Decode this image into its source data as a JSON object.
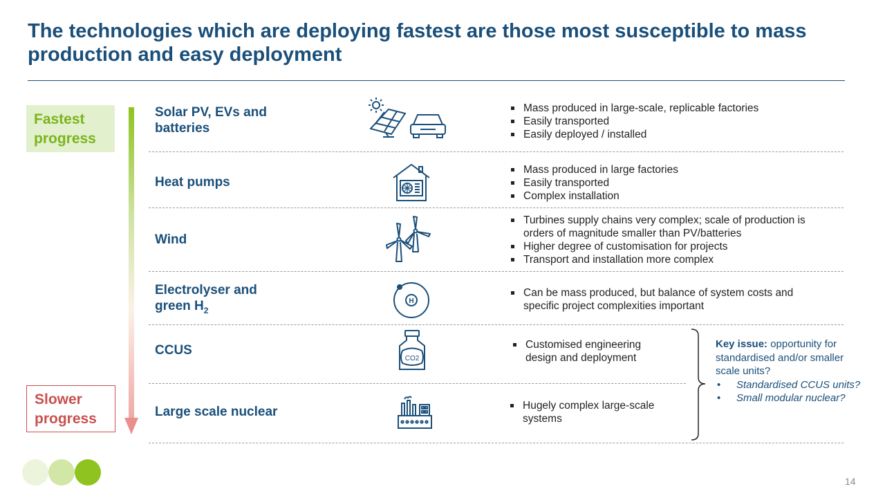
{
  "slide": {
    "title": "The technologies which are deploying fastest are those most susceptible to mass production and easy deployment",
    "page_number": "14"
  },
  "progress": {
    "fastest_label": "Fastest progress",
    "slower_label": "Slower progress"
  },
  "rows": [
    {
      "title": "Solar PV, EVs and batteries",
      "icon": "solar-panel-and-car-icon",
      "bullets": [
        "Mass produced in large-scale, replicable factories",
        "Easily transported",
        "Easily deployed / installed"
      ]
    },
    {
      "title": "Heat pumps",
      "icon": "heat-pump-house-icon",
      "bullets": [
        "Mass produced in large factories",
        "Easily transported",
        "Complex installation"
      ]
    },
    {
      "title": "Wind",
      "icon": "wind-turbines-icon",
      "bullets": [
        "Turbines supply chains very complex; scale of production is orders of magnitude smaller than PV/batteries",
        "Higher degree of customisation for projects",
        "Transport and installation more complex"
      ]
    },
    {
      "title": "Electrolyser and green H",
      "title_sub": "2",
      "icon": "hydrogen-atom-icon",
      "icon_text": "H",
      "bullets": [
        "Can be mass produced, but balance of system costs and specific project complexities important"
      ]
    },
    {
      "title": "CCUS",
      "icon": "co2-container-icon",
      "icon_text": "CO2",
      "bullets": [
        "Customised engineering design and deployment"
      ]
    },
    {
      "title": "Large scale nuclear",
      "icon": "nuclear-plant-icon",
      "bullets": [
        "Hugely complex large-scale systems"
      ]
    }
  ],
  "key_issue": {
    "heading": "Key issue:",
    "text": "opportunity for standardised and/or smaller scale units?",
    "items": [
      "Standardised CCUS units?",
      "Small modular nuclear?"
    ]
  },
  "colors": {
    "title_blue": "#1a4f7a",
    "fast_green": "#7ab51d",
    "slow_red": "#c8504d"
  }
}
